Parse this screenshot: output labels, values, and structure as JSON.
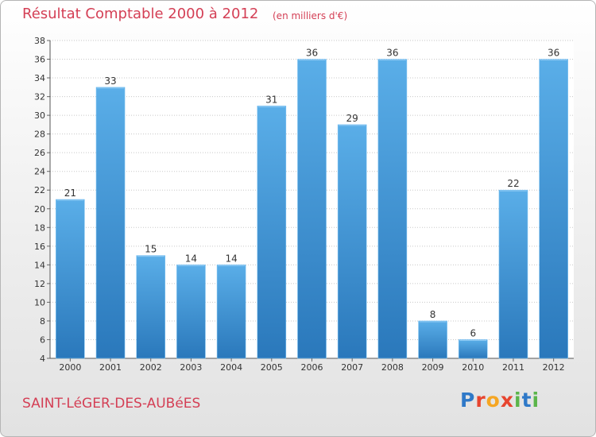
{
  "header": {
    "title": "Résultat Comptable 2000 à 2012",
    "subtitle": "(en milliers d'€)"
  },
  "footer": {
    "commune": "SAINT-LéGER-DES-AUBéES",
    "logo_parts": [
      "P",
      "r",
      "o",
      "x",
      "i",
      "t",
      "i"
    ],
    "logo_text": "Proxiti"
  },
  "colors": {
    "title": "#d43f55",
    "bar_top": "#5aaee8",
    "bar_bottom": "#2a78bb",
    "grid": "#c8c8c8"
  },
  "chart_data": {
    "type": "bar",
    "title": "Résultat Comptable 2000 à 2012",
    "subtitle": "(en milliers d'€)",
    "xlabel": "",
    "ylabel": "",
    "categories": [
      "2000",
      "2001",
      "2002",
      "2003",
      "2004",
      "2005",
      "2006",
      "2007",
      "2008",
      "2009",
      "2010",
      "2011",
      "2012"
    ],
    "values": [
      21,
      33,
      15,
      14,
      14,
      31,
      36,
      29,
      36,
      8,
      6,
      22,
      36
    ],
    "ylim": [
      4,
      38
    ],
    "yticks": [
      4,
      6,
      8,
      10,
      12,
      14,
      16,
      18,
      20,
      22,
      24,
      26,
      28,
      30,
      32,
      34,
      36,
      38
    ],
    "grid": true,
    "legend": "none"
  }
}
